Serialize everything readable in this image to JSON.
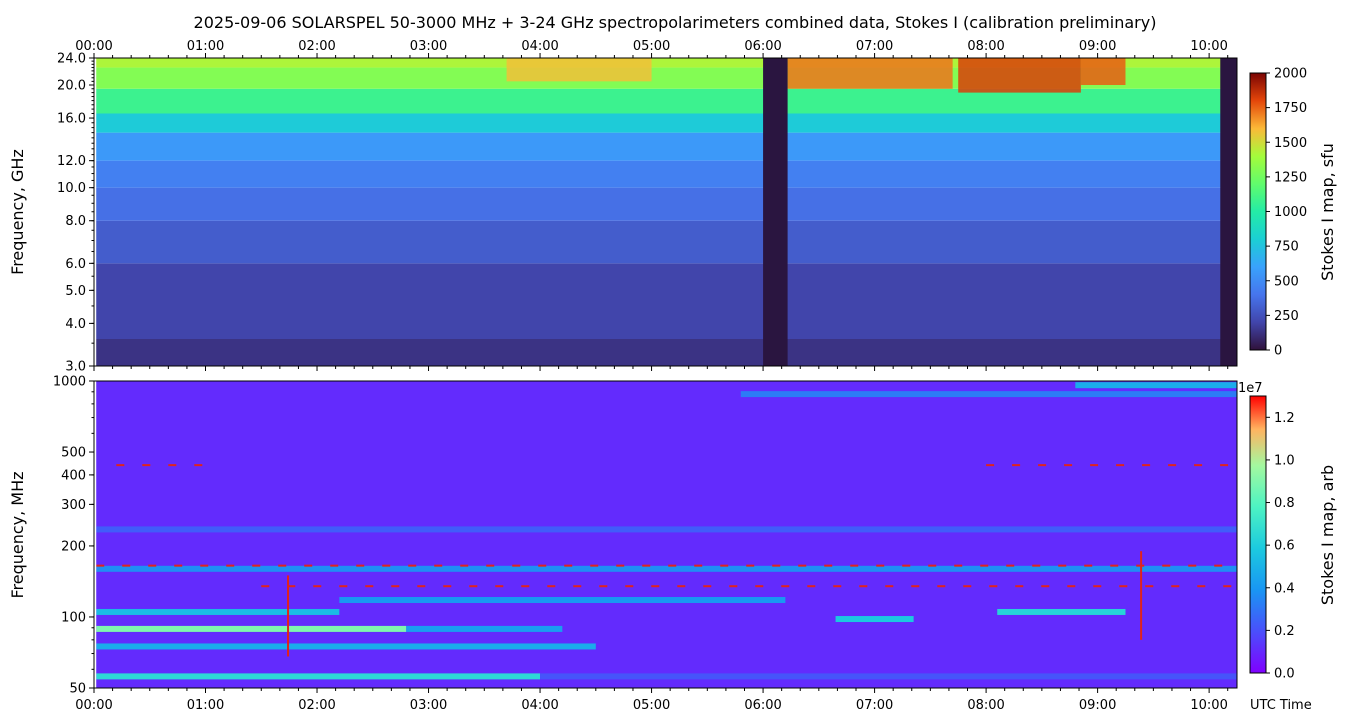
{
  "title": "2025-09-06  SOLARSPEL  50-3000 MHz  +  3-24 GHz  spectropolarimeters combined data,  Stokes I  (calibration preliminary)",
  "colors": {
    "background": "#ffffff",
    "axis": "#000000",
    "rfi_red": "#e0241c",
    "dark_gap": "#2a1540"
  },
  "chart_data": [
    {
      "type": "heatmap",
      "name": "upper-panel",
      "ylabel": "Frequency, GHz",
      "xlabel": "",
      "x_ticks": [
        "00:00",
        "01:00",
        "02:00",
        "03:00",
        "04:00",
        "05:00",
        "06:00",
        "07:00",
        "08:00",
        "09:00",
        "10:00"
      ],
      "x_ticks_position": "top",
      "x_range_hours": [
        0,
        10.25
      ],
      "y_scale": "log",
      "y_range": [
        3.0,
        24.0
      ],
      "y_ticks": [
        {
          "value": 3.0,
          "label": "3.0"
        },
        {
          "value": 4.0,
          "label": "4.0"
        },
        {
          "value": 5.0,
          "label": "5.0"
        },
        {
          "value": 6.0,
          "label": "6.0"
        },
        {
          "value": 8.0,
          "label": "8.0"
        },
        {
          "value": 10.0,
          "label": "10.0"
        },
        {
          "value": 12.0,
          "label": "12.0"
        },
        {
          "value": 16.0,
          "label": "16.0"
        },
        {
          "value": 20.0,
          "label": "20.0"
        },
        {
          "value": 24.0,
          "label": "24.0"
        }
      ],
      "colorbar": {
        "label": "Stokes I map, sfu",
        "colormap": "turbo",
        "range": [
          0,
          2000
        ],
        "ticks": [
          {
            "value": 0,
            "label": "0"
          },
          {
            "value": 250,
            "label": "250"
          },
          {
            "value": 500,
            "label": "500"
          },
          {
            "value": 750,
            "label": "750"
          },
          {
            "value": 1000,
            "label": "1000"
          },
          {
            "value": 1250,
            "label": "1250"
          },
          {
            "value": 1500,
            "label": "1500"
          },
          {
            "value": 1750,
            "label": "1750"
          },
          {
            "value": 2000,
            "label": "2000"
          }
        ]
      },
      "bands_sfu": [
        {
          "f_lo": 3.0,
          "f_hi": 3.6,
          "value": 130
        },
        {
          "f_lo": 3.6,
          "f_hi": 6.0,
          "value": 200
        },
        {
          "f_lo": 6.0,
          "f_hi": 8.0,
          "value": 300
        },
        {
          "f_lo": 8.0,
          "f_hi": 10.0,
          "value": 380
        },
        {
          "f_lo": 10.0,
          "f_hi": 12.0,
          "value": 450
        },
        {
          "f_lo": 12.0,
          "f_hi": 14.5,
          "value": 560
        },
        {
          "f_lo": 14.5,
          "f_hi": 16.5,
          "value": 780
        },
        {
          "f_lo": 16.5,
          "f_hi": 19.5,
          "value": 1080
        },
        {
          "f_lo": 19.5,
          "f_hi": 22.5,
          "value": 1300
        },
        {
          "f_lo": 22.5,
          "f_hi": 24.0,
          "value": 1420
        }
      ],
      "no_data_intervals_hours": [
        [
          0,
          0.02
        ],
        [
          6.0,
          6.22
        ],
        [
          10.1,
          10.25
        ]
      ],
      "enhancements": [
        {
          "t_start": 6.22,
          "t_end": 7.7,
          "f_lo": 19.5,
          "f_hi": 24.0,
          "value": 1720
        },
        {
          "t_start": 7.75,
          "t_end": 8.85,
          "f_lo": 19.0,
          "f_hi": 24.0,
          "value": 1820
        },
        {
          "t_start": 8.85,
          "t_end": 9.25,
          "f_lo": 20.0,
          "f_hi": 24.0,
          "value": 1760
        },
        {
          "t_start": 3.7,
          "t_end": 5.0,
          "f_lo": 20.5,
          "f_hi": 24.0,
          "value": 1580
        }
      ]
    },
    {
      "type": "heatmap",
      "name": "lower-panel",
      "ylabel": "Frequency, MHz",
      "xlabel": "UTC Time",
      "x_ticks": [
        "00:00",
        "01:00",
        "02:00",
        "03:00",
        "04:00",
        "05:00",
        "06:00",
        "07:00",
        "08:00",
        "09:00",
        "10:00"
      ],
      "x_range_hours": [
        0,
        10.25
      ],
      "y_scale": "log",
      "y_range": [
        50,
        1000
      ],
      "y_ticks": [
        {
          "value": 50,
          "label": "50"
        },
        {
          "value": 100,
          "label": "100"
        },
        {
          "value": 200,
          "label": "200"
        },
        {
          "value": 300,
          "label": "300"
        },
        {
          "value": 400,
          "label": "400"
        },
        {
          "value": 500,
          "label": "500"
        },
        {
          "value": 1000,
          "label": "1000"
        }
      ],
      "colorbar": {
        "label": "Stokes I map, arb",
        "colormap": "rainbow",
        "range": [
          0.0,
          1.3
        ],
        "offset_text": "1e7",
        "ticks": [
          {
            "value": 0.0,
            "label": "0.0"
          },
          {
            "value": 0.2,
            "label": "0.2"
          },
          {
            "value": 0.4,
            "label": "0.4"
          },
          {
            "value": 0.6,
            "label": "0.6"
          },
          {
            "value": 0.8,
            "label": "0.8"
          },
          {
            "value": 1.0,
            "label": "1.0"
          },
          {
            "value": 1.2,
            "label": "1.2"
          }
        ]
      },
      "background_value": 0.1,
      "lines": [
        {
          "freq": 56,
          "t_start": 0.02,
          "t_end": 4.0,
          "value": 0.62
        },
        {
          "freq": 56,
          "t_start": 4.0,
          "t_end": 10.25,
          "value": 0.2
        },
        {
          "freq": 75,
          "t_start": 0.02,
          "t_end": 4.5,
          "value": 0.45
        },
        {
          "freq": 89,
          "t_start": 0.02,
          "t_end": 2.8,
          "value": 0.85
        },
        {
          "freq": 89,
          "t_start": 2.8,
          "t_end": 4.2,
          "value": 0.4
        },
        {
          "freq": 105,
          "t_start": 0.02,
          "t_end": 2.2,
          "value": 0.5
        },
        {
          "freq": 118,
          "t_start": 2.2,
          "t_end": 6.2,
          "value": 0.38
        },
        {
          "freq": 98,
          "t_start": 6.65,
          "t_end": 7.35,
          "value": 0.55
        },
        {
          "freq": 105,
          "t_start": 8.1,
          "t_end": 9.25,
          "value": 0.6
        },
        {
          "freq": 160,
          "t_start": 0.02,
          "t_end": 10.25,
          "value": 0.35
        },
        {
          "freq": 235,
          "t_start": 0.02,
          "t_end": 10.25,
          "value": 0.22
        },
        {
          "freq": 880,
          "t_start": 5.8,
          "t_end": 10.25,
          "value": 0.3
        },
        {
          "freq": 960,
          "t_start": 8.8,
          "t_end": 10.25,
          "value": 0.45
        }
      ],
      "rfi_dashes": [
        {
          "freq": 440,
          "t_start": 0.2,
          "t_end": 0.9
        },
        {
          "freq": 440,
          "t_start": 8.0,
          "t_end": 10.15
        },
        {
          "freq": 165,
          "t_start": 0.02,
          "t_end": 10.25
        },
        {
          "freq": 135,
          "t_start": 1.5,
          "t_end": 10.2
        }
      ],
      "bursts": [
        {
          "t": 1.74,
          "f_lo": 68,
          "f_hi": 150,
          "value": 1.2
        },
        {
          "t": 9.39,
          "f_lo": 80,
          "f_hi": 190,
          "value": 1.1
        }
      ]
    }
  ]
}
